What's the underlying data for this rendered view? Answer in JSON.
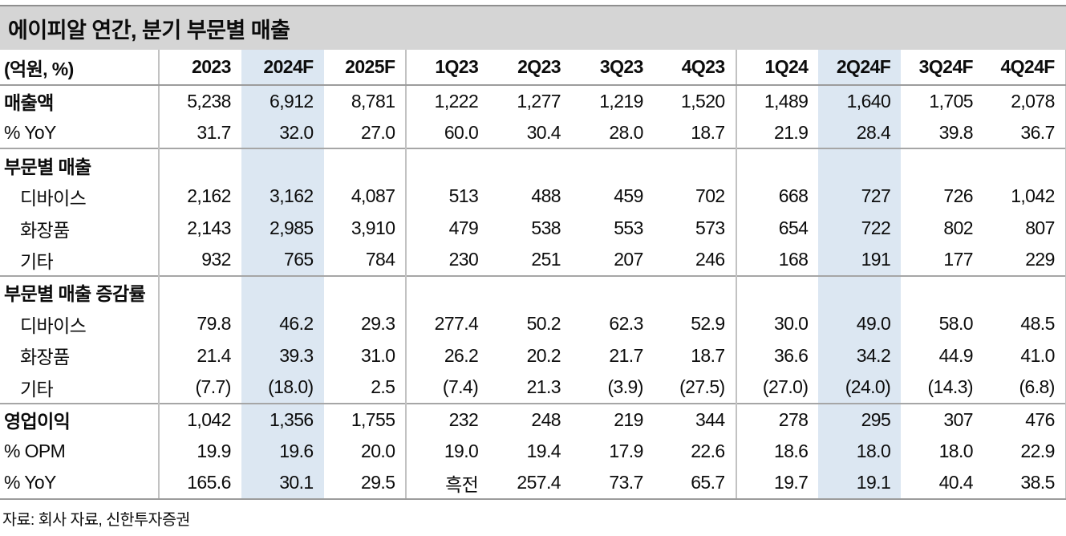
{
  "title": "에이피알 연간, 분기 부문별 매출",
  "unit_label": "(억원, %)",
  "columns": [
    "2023",
    "2024F",
    "2025F",
    "1Q23",
    "2Q23",
    "3Q23",
    "4Q23",
    "1Q24",
    "2Q24F",
    "3Q24F",
    "4Q24F"
  ],
  "highlighted_columns": [
    "2024F",
    "2Q24F"
  ],
  "group_separators_after": [
    "2025F",
    "4Q23"
  ],
  "colors": {
    "title_bar_bg": "#d5d5d5",
    "highlight": "#dce7f2",
    "section_line": "#a6a6a6",
    "column_line": "#c2c2c2"
  },
  "rows": [
    {
      "label": "매출액",
      "bold": true,
      "indent": false,
      "section_line": false,
      "values": [
        "5,238",
        "6,912",
        "8,781",
        "1,222",
        "1,277",
        "1,219",
        "1,520",
        "1,489",
        "1,640",
        "1,705",
        "2,078"
      ]
    },
    {
      "label": "% YoY",
      "bold": false,
      "indent": false,
      "section_line": false,
      "values": [
        "31.7",
        "32.0",
        "27.0",
        "60.0",
        "30.4",
        "28.0",
        "18.7",
        "21.9",
        "28.4",
        "39.8",
        "36.7"
      ]
    },
    {
      "label": "부문별 매출",
      "bold": true,
      "indent": false,
      "section_line": true,
      "values": [
        "",
        "",
        "",
        "",
        "",
        "",
        "",
        "",
        "",
        "",
        ""
      ]
    },
    {
      "label": "디바이스",
      "bold": false,
      "indent": true,
      "section_line": false,
      "values": [
        "2,162",
        "3,162",
        "4,087",
        "513",
        "488",
        "459",
        "702",
        "668",
        "727",
        "726",
        "1,042"
      ]
    },
    {
      "label": "화장품",
      "bold": false,
      "indent": true,
      "section_line": false,
      "values": [
        "2,143",
        "2,985",
        "3,910",
        "479",
        "538",
        "553",
        "573",
        "654",
        "722",
        "802",
        "807"
      ]
    },
    {
      "label": "기타",
      "bold": false,
      "indent": true,
      "section_line": false,
      "values": [
        "932",
        "765",
        "784",
        "230",
        "251",
        "207",
        "246",
        "168",
        "191",
        "177",
        "229"
      ]
    },
    {
      "label": "부문별 매출 증감률",
      "bold": true,
      "indent": false,
      "section_line": true,
      "values": [
        "",
        "",
        "",
        "",
        "",
        "",
        "",
        "",
        "",
        "",
        ""
      ]
    },
    {
      "label": "디바이스",
      "bold": false,
      "indent": true,
      "section_line": false,
      "values": [
        "79.8",
        "46.2",
        "29.3",
        "277.4",
        "50.2",
        "62.3",
        "52.9",
        "30.0",
        "49.0",
        "58.0",
        "48.5"
      ]
    },
    {
      "label": "화장품",
      "bold": false,
      "indent": true,
      "section_line": false,
      "values": [
        "21.4",
        "39.3",
        "31.0",
        "26.2",
        "20.2",
        "21.7",
        "18.7",
        "36.6",
        "34.2",
        "44.9",
        "41.0"
      ]
    },
    {
      "label": "기타",
      "bold": false,
      "indent": true,
      "section_line": false,
      "values": [
        "(7.7)",
        "(18.0)",
        "2.5",
        "(7.4)",
        "21.3",
        "(3.9)",
        "(27.5)",
        "(27.0)",
        "(24.0)",
        "(14.3)",
        "(6.8)"
      ]
    },
    {
      "label": "영업이익",
      "bold": true,
      "indent": false,
      "section_line": true,
      "values": [
        "1,042",
        "1,356",
        "1,755",
        "232",
        "248",
        "219",
        "344",
        "278",
        "295",
        "307",
        "476"
      ]
    },
    {
      "label": "% OPM",
      "bold": false,
      "indent": false,
      "section_line": false,
      "values": [
        "19.9",
        "19.6",
        "20.0",
        "19.0",
        "19.4",
        "17.9",
        "22.6",
        "18.6",
        "18.0",
        "18.0",
        "22.9"
      ]
    },
    {
      "label": "% YoY",
      "bold": false,
      "indent": false,
      "section_line": false,
      "values": [
        "165.6",
        "30.1",
        "29.5",
        "흑전",
        "257.4",
        "73.7",
        "65.7",
        "19.7",
        "19.1",
        "40.4",
        "38.5"
      ]
    }
  ],
  "source": "자료: 회사 자료, 신한투자증권"
}
